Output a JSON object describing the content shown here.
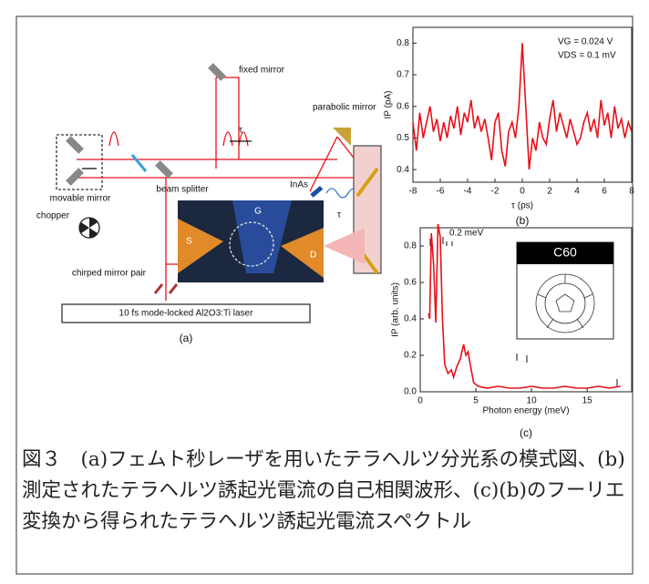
{
  "diagram": {
    "labels": {
      "fixed_mirror": "fixed mirror",
      "parabolic_mirror": "parabolic mirror",
      "tau_1": "τ",
      "tau_2": "τ",
      "movable_mirror": "movable mirror",
      "beam_splitter": "beam splitter",
      "inas": "InAs",
      "chopper": "chopper",
      "gate": "G",
      "source": "S",
      "drain": "D",
      "chirped_mirror_pair": "chirped mirror pair",
      "laser": "10 fs mode-locked Al2O3:Ti laser",
      "panel": "(a)"
    }
  },
  "chart_data": [
    {
      "type": "line",
      "panel": "(b)",
      "xlabel": "τ (ps)",
      "ylabel": "IP (pA)",
      "annotations": [
        "VG = 0.024 V",
        "VDS = 0.1 mV"
      ],
      "x": [
        -8,
        -7.75,
        -7.5,
        -7.25,
        -7,
        -6.75,
        -6.5,
        -6.25,
        -6,
        -5.75,
        -5.5,
        -5.25,
        -5,
        -4.75,
        -4.5,
        -4.25,
        -4,
        -3.75,
        -3.5,
        -3.25,
        -3,
        -2.75,
        -2.5,
        -2.25,
        -2,
        -1.75,
        -1.5,
        -1.25,
        -1,
        -0.75,
        -0.5,
        -0.25,
        0,
        0.25,
        0.5,
        0.75,
        1,
        1.25,
        1.5,
        1.75,
        2,
        2.25,
        2.5,
        2.75,
        3,
        3.25,
        3.5,
        3.75,
        4,
        4.25,
        4.5,
        4.75,
        5,
        5.25,
        5.5,
        5.75,
        6,
        6.25,
        6.5,
        6.75,
        7,
        7.25,
        7.5,
        7.75,
        8
      ],
      "series": [
        {
          "color": "#e8101a",
          "values": [
            0.55,
            0.46,
            0.58,
            0.5,
            0.55,
            0.6,
            0.52,
            0.56,
            0.49,
            0.55,
            0.5,
            0.57,
            0.53,
            0.6,
            0.51,
            0.58,
            0.55,
            0.62,
            0.53,
            0.57,
            0.52,
            0.56,
            0.5,
            0.43,
            0.55,
            0.58,
            0.46,
            0.41,
            0.52,
            0.55,
            0.5,
            0.6,
            0.8,
            0.6,
            0.4,
            0.5,
            0.46,
            0.55,
            0.5,
            0.48,
            0.56,
            0.62,
            0.52,
            0.58,
            0.54,
            0.5,
            0.56,
            0.52,
            0.48,
            0.5,
            0.55,
            0.58,
            0.52,
            0.56,
            0.5,
            0.62,
            0.54,
            0.58,
            0.5,
            0.6,
            0.53,
            0.56,
            0.5,
            0.55,
            0.52
          ]
        }
      ],
      "xlim": [
        -8,
        8
      ],
      "ylim": [
        0.36,
        0.85
      ],
      "xticks": [
        -8,
        -6,
        -4,
        -2,
        0,
        2,
        4,
        6,
        8
      ],
      "yticks": [
        0.4,
        0.5,
        0.6,
        0.7,
        0.8
      ]
    },
    {
      "type": "line",
      "panel": "(c)",
      "xlabel": "Photon energy (meV)",
      "ylabel": "IP (arb. units)",
      "annotations": [
        "0.2 meV"
      ],
      "inset_label": "C60",
      "x": [
        0.75,
        0.85,
        1.0,
        1.2,
        1.4,
        1.6,
        1.8,
        2.0,
        2.2,
        2.5,
        2.8,
        3.0,
        3.3,
        3.6,
        3.9,
        4.1,
        4.3,
        4.5,
        4.8,
        5.2,
        6,
        7,
        8,
        9,
        10,
        11,
        12,
        13,
        14,
        15,
        16,
        17,
        18
      ],
      "series": [
        {
          "color": "#e8101a",
          "values": [
            0.43,
            0.4,
            0.87,
            0.7,
            0.38,
            0.92,
            0.85,
            0.4,
            0.15,
            0.1,
            0.12,
            0.08,
            0.14,
            0.18,
            0.26,
            0.2,
            0.22,
            0.15,
            0.05,
            0.03,
            0.02,
            0.03,
            0.02,
            0.02,
            0.03,
            0.02,
            0.02,
            0.03,
            0.02,
            0.02,
            0.03,
            0.02,
            0.03
          ]
        }
      ],
      "xlim": [
        0,
        19
      ],
      "ylim": [
        0,
        0.9
      ],
      "xticks": [
        0,
        5,
        10,
        15
      ],
      "yticks": [
        {
          "value": 0,
          "label": "0.0"
        },
        0.2,
        0.4,
        0.6,
        0.8
      ]
    }
  ],
  "caption": "図３　(a)フェムト秒レーザを用いたテラヘルツ分光系の模式図、(b)測定されたテラヘルツ誘起光電流の自己相関波形、(c)(b)のフーリエ変換から得られたテラヘルツ誘起光電流スペクトル"
}
